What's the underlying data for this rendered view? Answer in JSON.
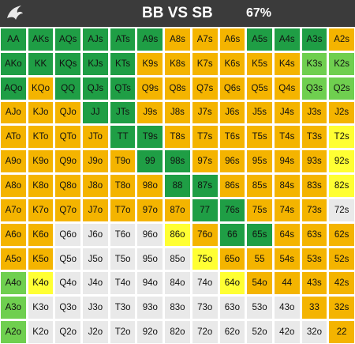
{
  "header": {
    "title": "BB VS SB",
    "pct": "67%"
  },
  "legend_colors": {
    "raise": "#1f9e45",
    "call": "#f4b400",
    "mixed_green": "#6fcf4f",
    "mixed_yellow": "#ffff33",
    "fold": "#e9e9e9"
  },
  "grid": [
    [
      {
        "h": "AA",
        "c": "raise"
      },
      {
        "h": "AKs",
        "c": "raise"
      },
      {
        "h": "AQs",
        "c": "raise"
      },
      {
        "h": "AJs",
        "c": "raise"
      },
      {
        "h": "ATs",
        "c": "raise"
      },
      {
        "h": "A9s",
        "c": "raise"
      },
      {
        "h": "A8s",
        "c": "call"
      },
      {
        "h": "A7s",
        "c": "call"
      },
      {
        "h": "A6s",
        "c": "call"
      },
      {
        "h": "A5s",
        "c": "raise"
      },
      {
        "h": "A4s",
        "c": "raise"
      },
      {
        "h": "A3s",
        "c": "raise"
      },
      {
        "h": "A2s",
        "c": "call"
      }
    ],
    [
      {
        "h": "AKo",
        "c": "raise"
      },
      {
        "h": "KK",
        "c": "raise"
      },
      {
        "h": "KQs",
        "c": "raise"
      },
      {
        "h": "KJs",
        "c": "raise"
      },
      {
        "h": "KTs",
        "c": "raise"
      },
      {
        "h": "K9s",
        "c": "call"
      },
      {
        "h": "K8s",
        "c": "call"
      },
      {
        "h": "K7s",
        "c": "call"
      },
      {
        "h": "K6s",
        "c": "call"
      },
      {
        "h": "K5s",
        "c": "call"
      },
      {
        "h": "K4s",
        "c": "call"
      },
      {
        "h": "K3s",
        "c": "mixed_green"
      },
      {
        "h": "K2s",
        "c": "mixed_green"
      }
    ],
    [
      {
        "h": "AQo",
        "c": "raise"
      },
      {
        "h": "KQo",
        "c": "call"
      },
      {
        "h": "QQ",
        "c": "raise"
      },
      {
        "h": "QJs",
        "c": "raise"
      },
      {
        "h": "QTs",
        "c": "raise"
      },
      {
        "h": "Q9s",
        "c": "call"
      },
      {
        "h": "Q8s",
        "c": "call"
      },
      {
        "h": "Q7s",
        "c": "call"
      },
      {
        "h": "Q6s",
        "c": "call"
      },
      {
        "h": "Q5s",
        "c": "call"
      },
      {
        "h": "Q4s",
        "c": "call"
      },
      {
        "h": "Q3s",
        "c": "mixed_green"
      },
      {
        "h": "Q2s",
        "c": "mixed_green"
      }
    ],
    [
      {
        "h": "AJo",
        "c": "call"
      },
      {
        "h": "KJo",
        "c": "call"
      },
      {
        "h": "QJo",
        "c": "call"
      },
      {
        "h": "JJ",
        "c": "raise"
      },
      {
        "h": "JTs",
        "c": "raise"
      },
      {
        "h": "J9s",
        "c": "call"
      },
      {
        "h": "J8s",
        "c": "call"
      },
      {
        "h": "J7s",
        "c": "call"
      },
      {
        "h": "J6s",
        "c": "call"
      },
      {
        "h": "J5s",
        "c": "call"
      },
      {
        "h": "J4s",
        "c": "call"
      },
      {
        "h": "J3s",
        "c": "call"
      },
      {
        "h": "J2s",
        "c": "call"
      }
    ],
    [
      {
        "h": "ATo",
        "c": "call"
      },
      {
        "h": "KTo",
        "c": "call"
      },
      {
        "h": "QTo",
        "c": "call"
      },
      {
        "h": "JTo",
        "c": "call"
      },
      {
        "h": "TT",
        "c": "raise"
      },
      {
        "h": "T9s",
        "c": "raise"
      },
      {
        "h": "T8s",
        "c": "call"
      },
      {
        "h": "T7s",
        "c": "call"
      },
      {
        "h": "T6s",
        "c": "call"
      },
      {
        "h": "T5s",
        "c": "call"
      },
      {
        "h": "T4s",
        "c": "call"
      },
      {
        "h": "T3s",
        "c": "call"
      },
      {
        "h": "T2s",
        "c": "mixed_yellow"
      }
    ],
    [
      {
        "h": "A9o",
        "c": "call"
      },
      {
        "h": "K9o",
        "c": "call"
      },
      {
        "h": "Q9o",
        "c": "call"
      },
      {
        "h": "J9o",
        "c": "call"
      },
      {
        "h": "T9o",
        "c": "call"
      },
      {
        "h": "99",
        "c": "raise"
      },
      {
        "h": "98s",
        "c": "raise"
      },
      {
        "h": "97s",
        "c": "call"
      },
      {
        "h": "96s",
        "c": "call"
      },
      {
        "h": "95s",
        "c": "call"
      },
      {
        "h": "94s",
        "c": "call"
      },
      {
        "h": "93s",
        "c": "call"
      },
      {
        "h": "92s",
        "c": "mixed_yellow"
      }
    ],
    [
      {
        "h": "A8o",
        "c": "call"
      },
      {
        "h": "K8o",
        "c": "call"
      },
      {
        "h": "Q8o",
        "c": "call"
      },
      {
        "h": "J8o",
        "c": "call"
      },
      {
        "h": "T8o",
        "c": "call"
      },
      {
        "h": "98o",
        "c": "call"
      },
      {
        "h": "88",
        "c": "raise"
      },
      {
        "h": "87s",
        "c": "raise"
      },
      {
        "h": "86s",
        "c": "call"
      },
      {
        "h": "85s",
        "c": "call"
      },
      {
        "h": "84s",
        "c": "call"
      },
      {
        "h": "83s",
        "c": "call"
      },
      {
        "h": "82s",
        "c": "mixed_yellow"
      }
    ],
    [
      {
        "h": "A7o",
        "c": "call"
      },
      {
        "h": "K7o",
        "c": "call"
      },
      {
        "h": "Q7o",
        "c": "call"
      },
      {
        "h": "J7o",
        "c": "call"
      },
      {
        "h": "T7o",
        "c": "call"
      },
      {
        "h": "97o",
        "c": "call"
      },
      {
        "h": "87o",
        "c": "call"
      },
      {
        "h": "77",
        "c": "raise"
      },
      {
        "h": "76s",
        "c": "raise"
      },
      {
        "h": "75s",
        "c": "call"
      },
      {
        "h": "74s",
        "c": "call"
      },
      {
        "h": "73s",
        "c": "call"
      },
      {
        "h": "72s",
        "c": "fold"
      }
    ],
    [
      {
        "h": "A6o",
        "c": "call"
      },
      {
        "h": "K6o",
        "c": "call"
      },
      {
        "h": "Q6o",
        "c": "fold"
      },
      {
        "h": "J6o",
        "c": "fold"
      },
      {
        "h": "T6o",
        "c": "fold"
      },
      {
        "h": "96o",
        "c": "fold"
      },
      {
        "h": "86o",
        "c": "mixed_yellow"
      },
      {
        "h": "76o",
        "c": "call"
      },
      {
        "h": "66",
        "c": "raise"
      },
      {
        "h": "65s",
        "c": "raise"
      },
      {
        "h": "64s",
        "c": "call"
      },
      {
        "h": "63s",
        "c": "call"
      },
      {
        "h": "62s",
        "c": "call"
      }
    ],
    [
      {
        "h": "A5o",
        "c": "call"
      },
      {
        "h": "K5o",
        "c": "call"
      },
      {
        "h": "Q5o",
        "c": "fold"
      },
      {
        "h": "J5o",
        "c": "fold"
      },
      {
        "h": "T5o",
        "c": "fold"
      },
      {
        "h": "95o",
        "c": "fold"
      },
      {
        "h": "85o",
        "c": "fold"
      },
      {
        "h": "75o",
        "c": "mixed_yellow"
      },
      {
        "h": "65o",
        "c": "call"
      },
      {
        "h": "55",
        "c": "call"
      },
      {
        "h": "54s",
        "c": "call"
      },
      {
        "h": "53s",
        "c": "call"
      },
      {
        "h": "52s",
        "c": "call"
      }
    ],
    [
      {
        "h": "A4o",
        "c": "mixed_green"
      },
      {
        "h": "K4o",
        "c": "mixed_yellow"
      },
      {
        "h": "Q4o",
        "c": "fold"
      },
      {
        "h": "J4o",
        "c": "fold"
      },
      {
        "h": "T4o",
        "c": "fold"
      },
      {
        "h": "94o",
        "c": "fold"
      },
      {
        "h": "84o",
        "c": "fold"
      },
      {
        "h": "74o",
        "c": "fold"
      },
      {
        "h": "64o",
        "c": "mixed_yellow"
      },
      {
        "h": "54o",
        "c": "call"
      },
      {
        "h": "44",
        "c": "call"
      },
      {
        "h": "43s",
        "c": "call"
      },
      {
        "h": "42s",
        "c": "call"
      }
    ],
    [
      {
        "h": "A3o",
        "c": "mixed_green"
      },
      {
        "h": "K3o",
        "c": "fold"
      },
      {
        "h": "Q3o",
        "c": "fold"
      },
      {
        "h": "J3o",
        "c": "fold"
      },
      {
        "h": "T3o",
        "c": "fold"
      },
      {
        "h": "93o",
        "c": "fold"
      },
      {
        "h": "83o",
        "c": "fold"
      },
      {
        "h": "73o",
        "c": "fold"
      },
      {
        "h": "63o",
        "c": "fold"
      },
      {
        "h": "53o",
        "c": "fold"
      },
      {
        "h": "43o",
        "c": "fold"
      },
      {
        "h": "33",
        "c": "call"
      },
      {
        "h": "32s",
        "c": "call"
      }
    ],
    [
      {
        "h": "A2o",
        "c": "mixed_green"
      },
      {
        "h": "K2o",
        "c": "fold"
      },
      {
        "h": "Q2o",
        "c": "fold"
      },
      {
        "h": "J2o",
        "c": "fold"
      },
      {
        "h": "T2o",
        "c": "fold"
      },
      {
        "h": "92o",
        "c": "fold"
      },
      {
        "h": "82o",
        "c": "fold"
      },
      {
        "h": "72o",
        "c": "fold"
      },
      {
        "h": "62o",
        "c": "fold"
      },
      {
        "h": "52o",
        "c": "fold"
      },
      {
        "h": "42o",
        "c": "fold"
      },
      {
        "h": "32o",
        "c": "fold"
      },
      {
        "h": "22",
        "c": "call"
      }
    ]
  ]
}
